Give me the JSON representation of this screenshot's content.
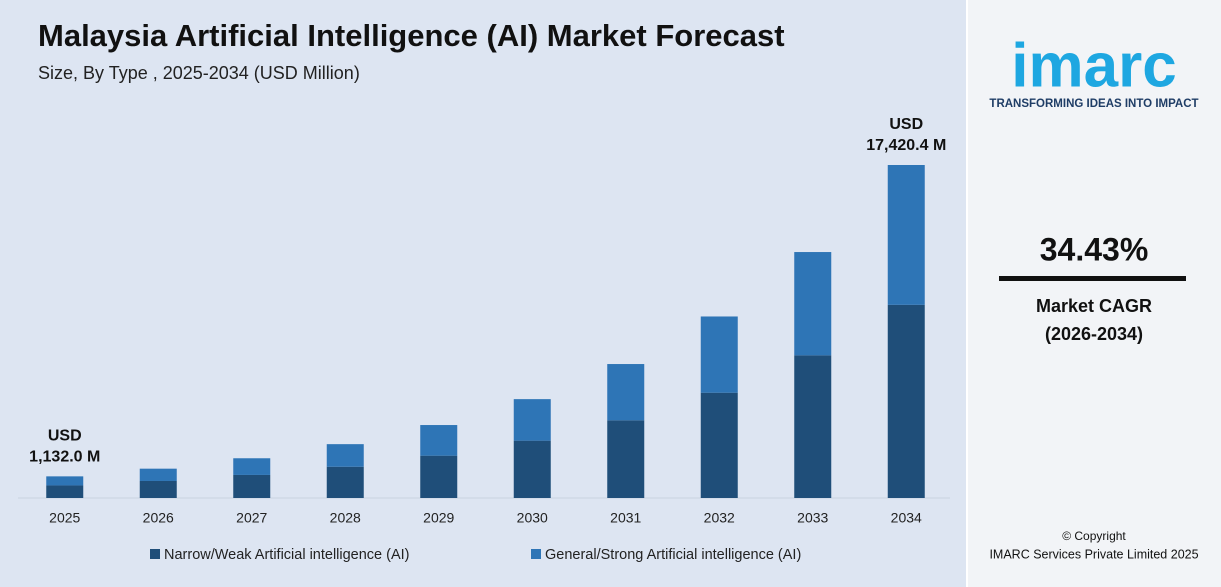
{
  "chart_data": {
    "type": "stacked-bar",
    "title": "Malaysia Artificial Intelligence (AI) Market Forecast",
    "subtitle": "Size, By Type , 2025-2034 (USD Million)",
    "categories": [
      "2025",
      "2026",
      "2027",
      "2028",
      "2029",
      "2030",
      "2031",
      "2032",
      "2033",
      "2034"
    ],
    "series": [
      {
        "name": "Narrow/Weak Artificial intelligence (AI)",
        "color": "#1f4e79",
        "values": [
          657,
          890,
          1206,
          1634,
          2214,
          3000,
          4065,
          5508,
          7463,
          10104
        ]
      },
      {
        "name": "General/Strong Artificial intelligence (AI)",
        "color": "#2e75b6",
        "values": [
          475,
          644,
          873,
          1183,
          1603,
          2172,
          2943,
          3988,
          5404,
          7316.4
        ]
      }
    ],
    "annotations": [
      [
        "USD",
        "1,132.0 M"
      ],
      [
        "USD",
        "17,420.4 M"
      ]
    ]
  },
  "sidebar": {
    "logo": "imarc",
    "tagline": "TRANSFORMING IDEAS INTO IMPACT",
    "cagr": "34.43%",
    "cagr_label": "Market CAGR",
    "cagr_period": "(2026-2034)",
    "copyright": "© Copyright",
    "company": "IMARC Services Private Limited 2025"
  }
}
